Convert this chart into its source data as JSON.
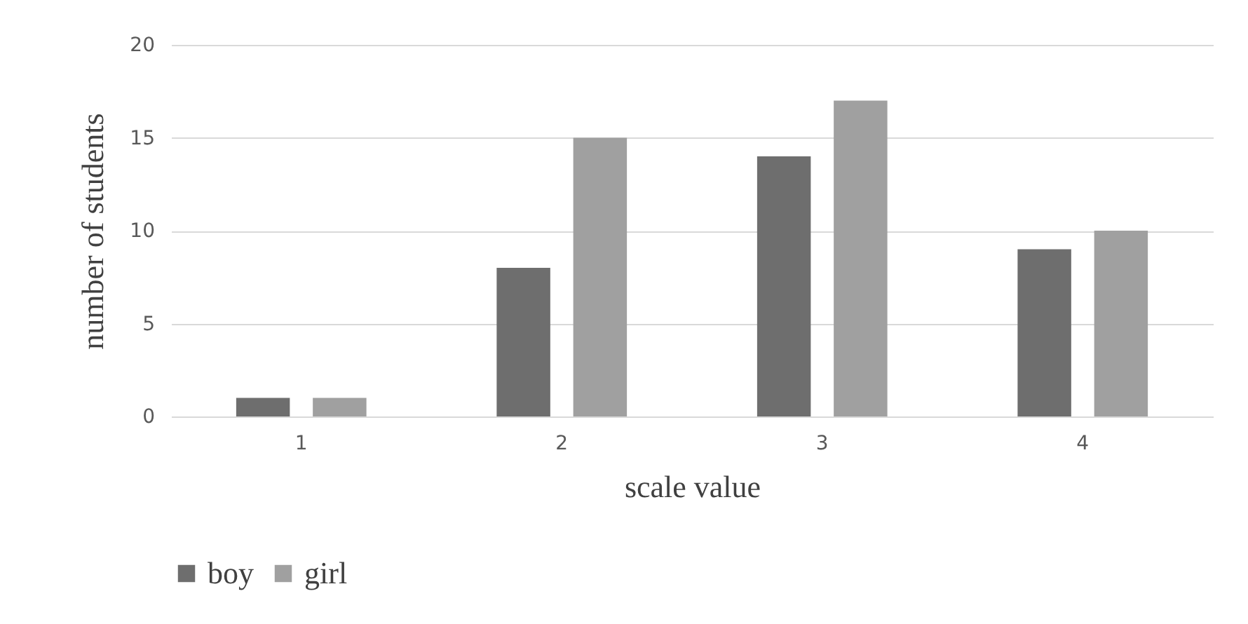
{
  "chart_data": {
    "type": "bar",
    "xlabel": "scale value",
    "ylabel": "number of students",
    "categories": [
      "1",
      "2",
      "3",
      "4"
    ],
    "series": [
      {
        "name": "boy",
        "color": "#6e6e6e",
        "values": [
          1,
          8,
          14,
          9
        ]
      },
      {
        "name": "girl",
        "color": "#a0a0a0",
        "values": [
          1,
          15,
          17,
          10
        ]
      }
    ],
    "ylim": [
      0,
      20
    ],
    "yticks": [
      0,
      5,
      10,
      15,
      20
    ],
    "grid": "y",
    "legend": "bottom"
  }
}
